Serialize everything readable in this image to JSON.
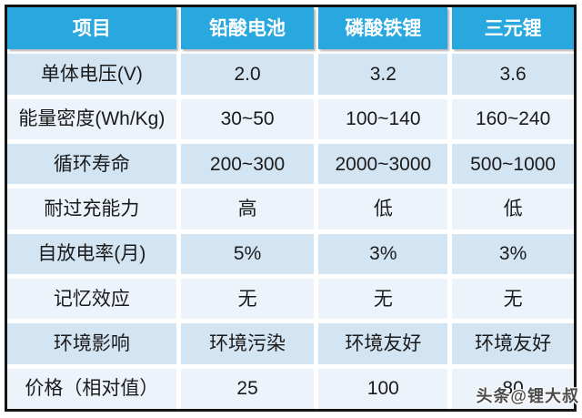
{
  "chart_data": {
    "type": "table",
    "title": "",
    "headers": [
      "项目",
      "铅酸电池",
      "磷酸铁锂",
      "三元锂"
    ],
    "rows": [
      {
        "label": "单体电压(V)",
        "values": [
          "2.0",
          "3.2",
          "3.6"
        ]
      },
      {
        "label": "能量密度(Wh/Kg)",
        "values": [
          "30~50",
          "100~140",
          "160~240"
        ]
      },
      {
        "label": "循环寿命",
        "values": [
          "200~300",
          "2000~3000",
          "500~1000"
        ]
      },
      {
        "label": "耐过充能力",
        "values": [
          "高",
          "低",
          "低"
        ]
      },
      {
        "label": "自放电率(月)",
        "values": [
          "5%",
          "3%",
          "3%"
        ]
      },
      {
        "label": "记忆效应",
        "values": [
          "无",
          "无",
          "无"
        ]
      },
      {
        "label": "环境影响",
        "values": [
          "环境污染",
          "环境友好",
          "环境友好"
        ]
      },
      {
        "label": "价格（相对值）",
        "values": [
          "25",
          "100",
          "80"
        ]
      }
    ]
  },
  "watermark": {
    "text": "头条@锂大叔"
  },
  "colors": {
    "header_bg": "#29a7df",
    "header_text": "#ffffff",
    "row_odd_bg": "#d3e4f3",
    "row_even_bg": "#ecf3fa",
    "cell_text": "#1b1b1b",
    "table_border": "#141414",
    "gap": "#ffffff"
  }
}
